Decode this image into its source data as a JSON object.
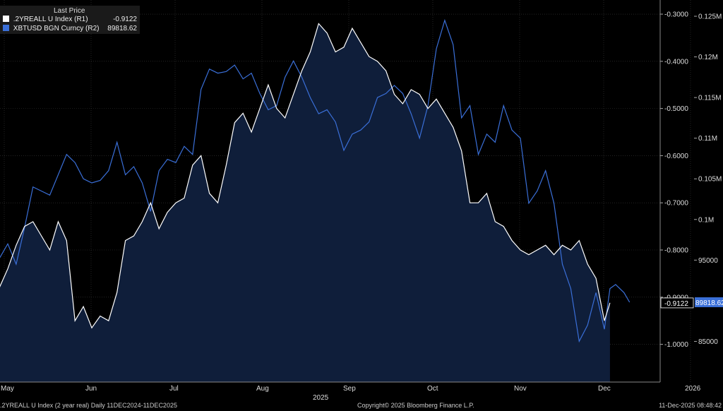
{
  "legend": {
    "header": "Last Price",
    "rows": [
      {
        "label": ".2YREALL U Index  (R1)",
        "value": "-0.9122",
        "color": "#ffffff"
      },
      {
        "label": "XBTUSD BGN Curncy  (R2)",
        "value": "89818.62",
        "color": "#3a6fd8"
      }
    ]
  },
  "footer": {
    "left": ".2YREALL U Index (2 year real) Daily 11DEC2024-11DEC2025",
    "center": "Copyright© 2025 Bloomberg Finance L.P.",
    "right": "11-Dec-2025 08:48:42"
  },
  "chart_data": {
    "type": "line",
    "x_labels": [
      "May",
      "Jun",
      "Jul",
      "Aug",
      "Sep",
      "Oct",
      "Nov",
      "Dec",
      "2026"
    ],
    "x_year_label": "2025",
    "y_axis_left_labels": [
      "-0.3000",
      "-0.4000",
      "-0.5000",
      "-0.6000",
      "-0.7000",
      "-0.8000",
      "-0.9000",
      "-1.0000"
    ],
    "y_axis_right_labels": [
      "0.125M",
      "0.12M",
      "0.115M",
      "0.11M",
      "0.105M",
      "0.1M",
      "95000",
      "85000"
    ],
    "r1_range": [
      -0.27,
      -1.08
    ],
    "r2_range": [
      127000,
      80000
    ],
    "last_r1": "-0.9122",
    "last_r2": "89818.62",
    "series": [
      {
        "name": ".2YREALL U Index",
        "axis": "R1",
        "color": "#ffffff",
        "fill": "#0f1e3a",
        "points": [
          [
            "2025-04-23",
            -0.9
          ],
          [
            "2025-04-26",
            -0.87
          ],
          [
            "2025-04-29",
            -0.88
          ],
          [
            "2025-05-02",
            -0.84
          ],
          [
            "2025-05-05",
            -0.79
          ],
          [
            "2025-05-08",
            -0.75
          ],
          [
            "2025-05-11",
            -0.74
          ],
          [
            "2025-05-14",
            -0.77
          ],
          [
            "2025-05-17",
            -0.8
          ],
          [
            "2025-05-20",
            -0.74
          ],
          [
            "2025-05-23",
            -0.78
          ],
          [
            "2025-05-26",
            -0.95
          ],
          [
            "2025-05-29",
            -0.92
          ],
          [
            "2025-06-01",
            -0.965
          ],
          [
            "2025-06-04",
            -0.94
          ],
          [
            "2025-06-07",
            -0.95
          ],
          [
            "2025-06-10",
            -0.89
          ],
          [
            "2025-06-13",
            -0.78
          ],
          [
            "2025-06-16",
            -0.77
          ],
          [
            "2025-06-19",
            -0.74
          ],
          [
            "2025-06-22",
            -0.7
          ],
          [
            "2025-06-25",
            -0.755
          ],
          [
            "2025-06-28",
            -0.72
          ],
          [
            "2025-07-01",
            -0.7
          ],
          [
            "2025-07-04",
            -0.69
          ],
          [
            "2025-07-07",
            -0.62
          ],
          [
            "2025-07-10",
            -0.6
          ],
          [
            "2025-07-13",
            -0.68
          ],
          [
            "2025-07-16",
            -0.7
          ],
          [
            "2025-07-19",
            -0.62
          ],
          [
            "2025-07-22",
            -0.53
          ],
          [
            "2025-07-25",
            -0.51
          ],
          [
            "2025-07-28",
            -0.55
          ],
          [
            "2025-07-31",
            -0.5
          ],
          [
            "2025-08-03",
            -0.45
          ],
          [
            "2025-08-06",
            -0.5
          ],
          [
            "2025-08-09",
            -0.52
          ],
          [
            "2025-08-12",
            -0.47
          ],
          [
            "2025-08-15",
            -0.42
          ],
          [
            "2025-08-18",
            -0.38
          ],
          [
            "2025-08-21",
            -0.32
          ],
          [
            "2025-08-24",
            -0.34
          ],
          [
            "2025-08-27",
            -0.38
          ],
          [
            "2025-08-30",
            -0.37
          ],
          [
            "2025-09-02",
            -0.33
          ],
          [
            "2025-09-05",
            -0.36
          ],
          [
            "2025-09-08",
            -0.39
          ],
          [
            "2025-09-11",
            -0.4
          ],
          [
            "2025-09-14",
            -0.42
          ],
          [
            "2025-09-17",
            -0.47
          ],
          [
            "2025-09-20",
            -0.49
          ],
          [
            "2025-09-23",
            -0.46
          ],
          [
            "2025-09-26",
            -0.47
          ],
          [
            "2025-09-29",
            -0.5
          ],
          [
            "2025-10-02",
            -0.48
          ],
          [
            "2025-10-05",
            -0.51
          ],
          [
            "2025-10-08",
            -0.54
          ],
          [
            "2025-10-11",
            -0.59
          ],
          [
            "2025-10-14",
            -0.7
          ],
          [
            "2025-10-17",
            -0.7
          ],
          [
            "2025-10-20",
            -0.68
          ],
          [
            "2025-10-23",
            -0.74
          ],
          [
            "2025-10-26",
            -0.75
          ],
          [
            "2025-10-29",
            -0.78
          ],
          [
            "2025-11-01",
            -0.8
          ],
          [
            "2025-11-04",
            -0.81
          ],
          [
            "2025-11-07",
            -0.8
          ],
          [
            "2025-11-10",
            -0.79
          ],
          [
            "2025-11-13",
            -0.81
          ],
          [
            "2025-11-16",
            -0.79
          ],
          [
            "2025-11-19",
            -0.8
          ],
          [
            "2025-11-22",
            -0.78
          ],
          [
            "2025-11-25",
            -0.83
          ],
          [
            "2025-11-28",
            -0.86
          ],
          [
            "2025-12-01",
            -0.95
          ],
          [
            "2025-12-03",
            -0.912
          ]
        ]
      },
      {
        "name": "XBTUSD BGN Curncy",
        "axis": "R2",
        "color": "#3a6fd8",
        "points": [
          [
            "2025-04-23",
            94500
          ],
          [
            "2025-04-26",
            94800
          ],
          [
            "2025-04-29",
            95200
          ],
          [
            "2025-05-02",
            97000
          ],
          [
            "2025-05-05",
            94500
          ],
          [
            "2025-05-08",
            99000
          ],
          [
            "2025-05-11",
            104000
          ],
          [
            "2025-05-14",
            103500
          ],
          [
            "2025-05-17",
            103000
          ],
          [
            "2025-05-20",
            105500
          ],
          [
            "2025-05-23",
            108000
          ],
          [
            "2025-05-26",
            107000
          ],
          [
            "2025-05-29",
            105000
          ],
          [
            "2025-06-01",
            104500
          ],
          [
            "2025-06-04",
            104800
          ],
          [
            "2025-06-07",
            106000
          ],
          [
            "2025-06-10",
            109500
          ],
          [
            "2025-06-13",
            105500
          ],
          [
            "2025-06-16",
            106500
          ],
          [
            "2025-06-19",
            104500
          ],
          [
            "2025-06-22",
            101000
          ],
          [
            "2025-06-25",
            106000
          ],
          [
            "2025-06-28",
            107400
          ],
          [
            "2025-07-01",
            107000
          ],
          [
            "2025-07-04",
            109000
          ],
          [
            "2025-07-07",
            108000
          ],
          [
            "2025-07-10",
            116000
          ],
          [
            "2025-07-13",
            118500
          ],
          [
            "2025-07-16",
            118000
          ],
          [
            "2025-07-19",
            118200
          ],
          [
            "2025-07-22",
            119000
          ],
          [
            "2025-07-25",
            117300
          ],
          [
            "2025-07-28",
            118000
          ],
          [
            "2025-07-31",
            115500
          ],
          [
            "2025-08-03",
            113500
          ],
          [
            "2025-08-06",
            114000
          ],
          [
            "2025-08-09",
            117500
          ],
          [
            "2025-08-12",
            119500
          ],
          [
            "2025-08-15",
            117500
          ],
          [
            "2025-08-18",
            115000
          ],
          [
            "2025-08-21",
            113000
          ],
          [
            "2025-08-24",
            113500
          ],
          [
            "2025-08-27",
            112000
          ],
          [
            "2025-08-30",
            108500
          ],
          [
            "2025-09-02",
            110500
          ],
          [
            "2025-09-05",
            111000
          ],
          [
            "2025-09-08",
            112000
          ],
          [
            "2025-09-11",
            115000
          ],
          [
            "2025-09-14",
            115500
          ],
          [
            "2025-09-17",
            116500
          ],
          [
            "2025-09-20",
            115500
          ],
          [
            "2025-09-23",
            113000
          ],
          [
            "2025-09-26",
            110000
          ],
          [
            "2025-09-29",
            114000
          ],
          [
            "2025-10-02",
            121000
          ],
          [
            "2025-10-05",
            124500
          ],
          [
            "2025-10-08",
            121500
          ],
          [
            "2025-10-11",
            112500
          ],
          [
            "2025-10-14",
            114000
          ],
          [
            "2025-10-17",
            108000
          ],
          [
            "2025-10-20",
            110500
          ],
          [
            "2025-10-23",
            109500
          ],
          [
            "2025-10-26",
            114000
          ],
          [
            "2025-10-29",
            111000
          ],
          [
            "2025-11-01",
            110000
          ],
          [
            "2025-11-04",
            102000
          ],
          [
            "2025-11-07",
            103500
          ],
          [
            "2025-11-10",
            106000
          ],
          [
            "2025-11-13",
            102000
          ],
          [
            "2025-11-16",
            94500
          ],
          [
            "2025-11-19",
            91500
          ],
          [
            "2025-11-22",
            85000
          ],
          [
            "2025-11-25",
            87000
          ],
          [
            "2025-11-28",
            91000
          ],
          [
            "2025-12-01",
            86500
          ],
          [
            "2025-12-03",
            91500
          ],
          [
            "2025-12-05",
            92000
          ],
          [
            "2025-12-08",
            91000
          ],
          [
            "2025-12-10",
            89818.62
          ]
        ]
      }
    ]
  }
}
